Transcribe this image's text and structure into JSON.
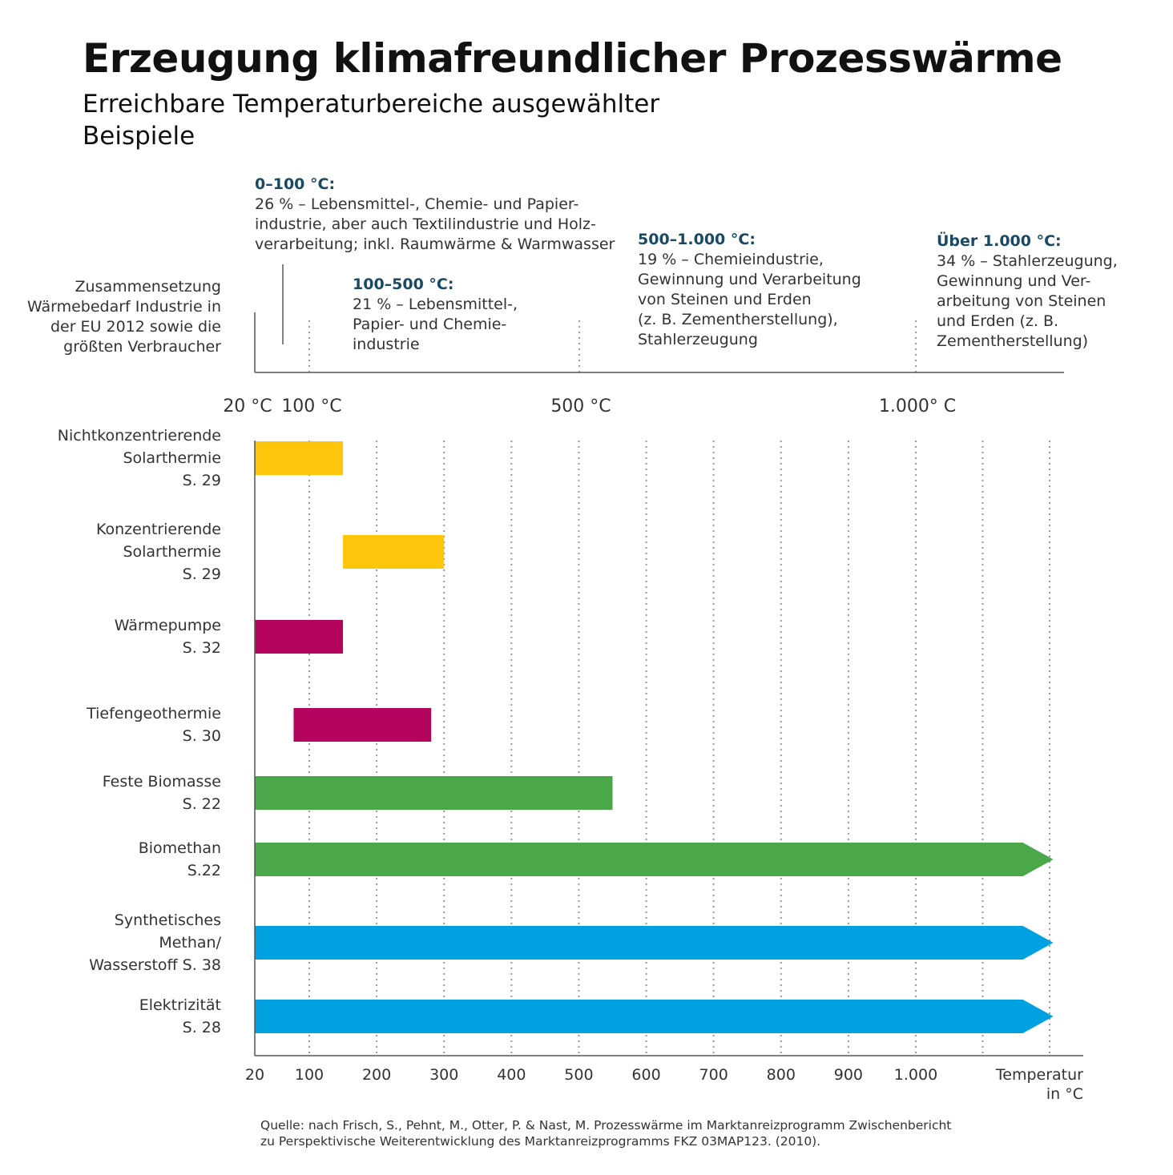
{
  "title": "Erzeugung klimafreundlicher Prozesswärme",
  "subtitle": "Erreichbare Temperaturbereiche ausgewählter Beispiele",
  "composition_label": "Zusammensetzung Wärmebedarf Industrie in der EU 2012 sowie die größten Verbraucher",
  "segments": [
    {
      "heading": "0–100 °C:",
      "body": "26 % – Lebensmittel-, Chemie- und Papier-\nindustrie, aber auch Textilindustrie und Holz-\nverarbeitung; inkl. Raumwärme & Warmwasser"
    },
    {
      "heading": "100–500 °C:",
      "body": "21 % – Lebensmittel-,\nPapier- und Chemie-\nindustrie"
    },
    {
      "heading": "500–1.000 °C:",
      "body": "19 % – Chemieindustrie,\nGewinnung und Verarbeitung\nvon Steinen und Erden\n(z. B. Zementherstellung),\nStahlerzeugung"
    },
    {
      "heading": "Über 1.000 °C:",
      "body": "34 % – Stahlerzeugung,\nGewinnung und Ver-\narbeitung von Steinen\nund Erden (z. B.\nZementherstellung)"
    }
  ],
  "top_axis_labels": [
    "20 °C",
    "100 °C",
    "500 °C",
    "1.000° C"
  ],
  "source": "Quelle: nach Frisch, S., Pehnt, M., Otter, P. & Nast, M. Prozesswärme im Marktanreizprogramm Zwischenbericht\nzu Perspektivische Weiterentwicklung des Marktanreizprogramms FKZ 03MAP123. (2010).",
  "chart_data": {
    "type": "bar",
    "orientation": "horizontal-range",
    "xlabel": "Temperatur in °C",
    "xlabel_lines": [
      "Temperatur",
      "in °C"
    ],
    "xlim": [
      20,
      1200
    ],
    "x_ticks": [
      20,
      100,
      200,
      300,
      400,
      500,
      600,
      700,
      800,
      900,
      1000
    ],
    "x_tick_labels": [
      "20",
      "100",
      "200",
      "300",
      "400",
      "500",
      "600",
      "700",
      "800",
      "900",
      "1.000"
    ],
    "grid": true,
    "bars": [
      {
        "label_lines": [
          "Nichtkonzentrierende",
          "Solarthermie",
          "S. 29"
        ],
        "start": 20,
        "end": 150,
        "color": "#fdc60c",
        "open_ended": false
      },
      {
        "label_lines": [
          "Konzentrierende",
          "Solarthermie",
          "S. 29"
        ],
        "start": 150,
        "end": 300,
        "color": "#fdc60c",
        "open_ended": false
      },
      {
        "label_lines": [
          "Wärmepumpe",
          "S. 32"
        ],
        "start": 20,
        "end": 150,
        "color": "#b5045e",
        "open_ended": false
      },
      {
        "label_lines": [
          "Tiefengeothermie",
          "S. 30"
        ],
        "start": 77,
        "end": 281,
        "color": "#b5045e",
        "open_ended": false
      },
      {
        "label_lines": [
          "Feste Biomasse",
          "S. 22"
        ],
        "start": 20,
        "end": 550,
        "color": "#4aa84a",
        "open_ended": false
      },
      {
        "label_lines": [
          "Biomethan",
          "S.22"
        ],
        "start": 20,
        "end": 1160,
        "color": "#4aa84a",
        "open_ended": true
      },
      {
        "label_lines": [
          "Synthetisches",
          "Methan/",
          "Wasserstoff S. 38"
        ],
        "start": 20,
        "end": 1160,
        "color": "#00a1e0",
        "open_ended": true
      },
      {
        "label_lines": [
          "Elektrizität",
          "S. 28"
        ],
        "start": 20,
        "end": 1160,
        "color": "#00a1e0",
        "open_ended": true
      }
    ]
  }
}
